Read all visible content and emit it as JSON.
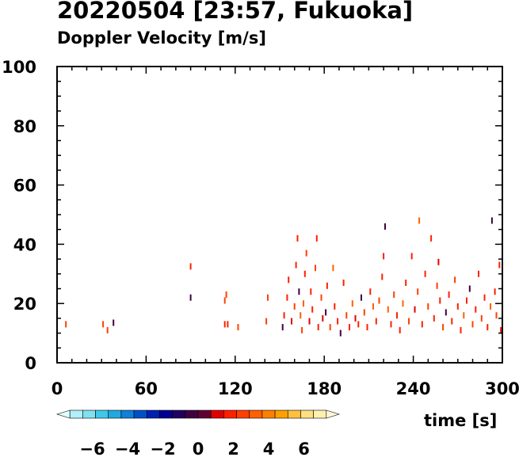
{
  "title": "20220504 [23:57, Fukuoka]",
  "subtitle": "Doppler Velocity [m/s]",
  "chart_data": {
    "type": "scatter",
    "xlabel": "time [s]",
    "ylabel": "",
    "xlim": [
      0,
      300
    ],
    "ylim": [
      0,
      100
    ],
    "x_ticks": [
      "0",
      "60",
      "120",
      "180",
      "240",
      "300"
    ],
    "y_ticks": [
      "0",
      "20",
      "40",
      "60",
      "80",
      "100"
    ],
    "x_minor_step": 10,
    "y_minor_step": 5,
    "grid": false,
    "colorbar": {
      "placement": "bottom-left",
      "range": [
        -8,
        8
      ],
      "tick_labels": [
        "−6",
        "−4",
        "−2",
        "0",
        "2",
        "4",
        "6"
      ],
      "tick_values": [
        -6,
        -4,
        -2,
        0,
        2,
        4,
        6
      ],
      "colors": [
        "#e0ffff",
        "#b0f0f8",
        "#80e0f0",
        "#40c8e8",
        "#20a8e0",
        "#1080d8",
        "#0050c8",
        "#0020b0",
        "#000090",
        "#200060",
        "#400040",
        "#600030",
        "#e00000",
        "#ff2000",
        "#ff4000",
        "#ff6000",
        "#ff8000",
        "#ffa000",
        "#ffc040",
        "#ffe080",
        "#fff0b0",
        "#fff8d8"
      ]
    },
    "points": [
      {
        "t": 6,
        "h": 13,
        "v": 2.5
      },
      {
        "t": 31,
        "h": 13,
        "v": 2.5
      },
      {
        "t": 34,
        "h": 11,
        "v": 2.5
      },
      {
        "t": 38,
        "h": 13.5,
        "v": -0.5
      },
      {
        "t": 90,
        "h": 32.5,
        "v": 2
      },
      {
        "t": 90,
        "h": 22,
        "v": -0.3
      },
      {
        "t": 113,
        "h": 21,
        "v": 2.5
      },
      {
        "t": 114,
        "h": 23,
        "v": 2.5
      },
      {
        "t": 113,
        "h": 13,
        "v": 1.5
      },
      {
        "t": 115,
        "h": 13,
        "v": 2
      },
      {
        "t": 122,
        "h": 12,
        "v": 2.5
      },
      {
        "t": 141,
        "h": 14,
        "v": 2.5
      },
      {
        "t": 142,
        "h": 22,
        "v": 2.5
      },
      {
        "t": 152,
        "h": 12,
        "v": -0.5
      },
      {
        "t": 153,
        "h": 16,
        "v": 2
      },
      {
        "t": 155,
        "h": 22,
        "v": 1.5
      },
      {
        "t": 156,
        "h": 28,
        "v": 2
      },
      {
        "t": 158,
        "h": 14,
        "v": 1
      },
      {
        "t": 160,
        "h": 19,
        "v": 2.5
      },
      {
        "t": 161,
        "h": 33,
        "v": 1.5
      },
      {
        "t": 162,
        "h": 42,
        "v": 2
      },
      {
        "t": 163,
        "h": 24,
        "v": -0.2
      },
      {
        "t": 164,
        "h": 16,
        "v": 3
      },
      {
        "t": 165,
        "h": 11,
        "v": 2.5
      },
      {
        "t": 166,
        "h": 20,
        "v": 3
      },
      {
        "t": 167,
        "h": 30,
        "v": 2
      },
      {
        "t": 168,
        "h": 37,
        "v": 2.5
      },
      {
        "t": 170,
        "h": 14,
        "v": 1
      },
      {
        "t": 171,
        "h": 24,
        "v": 2
      },
      {
        "t": 172,
        "h": 18,
        "v": 1.5
      },
      {
        "t": 174,
        "h": 32,
        "v": 2.5
      },
      {
        "t": 175,
        "h": 42,
        "v": 1.5
      },
      {
        "t": 176,
        "h": 12,
        "v": 2
      },
      {
        "t": 178,
        "h": 22,
        "v": 2.5
      },
      {
        "t": 179,
        "h": 15,
        "v": 1
      },
      {
        "t": 181,
        "h": 17,
        "v": -0.3
      },
      {
        "t": 182,
        "h": 26,
        "v": 2
      },
      {
        "t": 184,
        "h": 12,
        "v": 2.5
      },
      {
        "t": 186,
        "h": 32,
        "v": 3
      },
      {
        "t": 187,
        "h": 19,
        "v": 1.5
      },
      {
        "t": 189,
        "h": 14,
        "v": 2
      },
      {
        "t": 191,
        "h": 10,
        "v": -0.4
      },
      {
        "t": 193,
        "h": 27,
        "v": 1.5
      },
      {
        "t": 195,
        "h": 16,
        "v": 2.5
      },
      {
        "t": 197,
        "h": 12,
        "v": 1.5
      },
      {
        "t": 199,
        "h": 20,
        "v": 3
      },
      {
        "t": 201,
        "h": 15,
        "v": 1
      },
      {
        "t": 203,
        "h": 13,
        "v": 2
      },
      {
        "t": 205,
        "h": 22,
        "v": -0.2
      },
      {
        "t": 207,
        "h": 17,
        "v": 2.5
      },
      {
        "t": 209,
        "h": 12,
        "v": 1.5
      },
      {
        "t": 211,
        "h": 24,
        "v": 2
      },
      {
        "t": 213,
        "h": 19,
        "v": 3.5
      },
      {
        "t": 215,
        "h": 14,
        "v": 1.5
      },
      {
        "t": 217,
        "h": 21,
        "v": 2.5
      },
      {
        "t": 219,
        "h": 29,
        "v": 1.5
      },
      {
        "t": 220,
        "h": 36,
        "v": 2
      },
      {
        "t": 221,
        "h": 46,
        "v": -0.5
      },
      {
        "t": 223,
        "h": 18,
        "v": 3
      },
      {
        "t": 225,
        "h": 13,
        "v": 2
      },
      {
        "t": 227,
        "h": 23,
        "v": 2.5
      },
      {
        "t": 229,
        "h": 16,
        "v": 1.5
      },
      {
        "t": 231,
        "h": 11,
        "v": 2
      },
      {
        "t": 233,
        "h": 20,
        "v": 3
      },
      {
        "t": 235,
        "h": 27,
        "v": 1.5
      },
      {
        "t": 237,
        "h": 14,
        "v": 2.5
      },
      {
        "t": 239,
        "h": 36,
        "v": 2
      },
      {
        "t": 241,
        "h": 18,
        "v": 1
      },
      {
        "t": 243,
        "h": 24,
        "v": 2.5
      },
      {
        "t": 244,
        "h": 48,
        "v": 3
      },
      {
        "t": 246,
        "h": 13,
        "v": 2
      },
      {
        "t": 248,
        "h": 30,
        "v": 1.5
      },
      {
        "t": 250,
        "h": 19,
        "v": 2.5
      },
      {
        "t": 252,
        "h": 42,
        "v": 2
      },
      {
        "t": 254,
        "h": 15,
        "v": 1.5
      },
      {
        "t": 256,
        "h": 26,
        "v": 2.5
      },
      {
        "t": 257,
        "h": 34,
        "v": 1
      },
      {
        "t": 258,
        "h": 21,
        "v": 2
      },
      {
        "t": 260,
        "h": 12,
        "v": 2.5
      },
      {
        "t": 262,
        "h": 17,
        "v": -0.3
      },
      {
        "t": 264,
        "h": 23,
        "v": 2
      },
      {
        "t": 266,
        "h": 14,
        "v": 1.5
      },
      {
        "t": 268,
        "h": 28,
        "v": 2.5
      },
      {
        "t": 270,
        "h": 19,
        "v": 2
      },
      {
        "t": 272,
        "h": 11,
        "v": 1.5
      },
      {
        "t": 274,
        "h": 16,
        "v": 3
      },
      {
        "t": 276,
        "h": 21,
        "v": 2
      },
      {
        "t": 278,
        "h": 25,
        "v": -0.2
      },
      {
        "t": 280,
        "h": 13,
        "v": 2.5
      },
      {
        "t": 282,
        "h": 18,
        "v": 1.5
      },
      {
        "t": 284,
        "h": 30,
        "v": 2
      },
      {
        "t": 286,
        "h": 15,
        "v": 2.5
      },
      {
        "t": 288,
        "h": 22,
        "v": 1.5
      },
      {
        "t": 290,
        "h": 12,
        "v": 2
      },
      {
        "t": 292,
        "h": 19,
        "v": 3
      },
      {
        "t": 293,
        "h": 48,
        "v": -0.4
      },
      {
        "t": 295,
        "h": 24,
        "v": 2
      },
      {
        "t": 296,
        "h": 16,
        "v": 2.5
      },
      {
        "t": 298,
        "h": 33,
        "v": 1.5
      },
      {
        "t": 299,
        "h": 11,
        "v": 2
      },
      {
        "t": 300,
        "h": 20,
        "v": 2.5
      }
    ]
  }
}
